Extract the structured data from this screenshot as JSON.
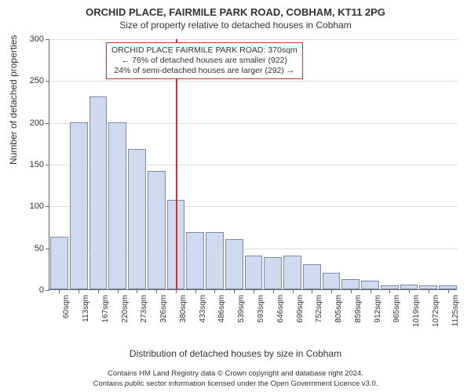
{
  "header": {
    "title": "ORCHID PLACE, FAIRMILE PARK ROAD, COBHAM, KT11 2PG",
    "subtitle": "Size of property relative to detached houses in Cobham"
  },
  "chart": {
    "type": "bar",
    "background_color": "#ffffff",
    "grid_color": "#dddddd",
    "bar_fill": "#cfdaee",
    "bar_stroke": "#7a8aa8",
    "reference_line_color": "#cc3333",
    "reference_line_x_index": 6,
    "x_categories": [
      "60sqm",
      "113sqm",
      "167sqm",
      "220sqm",
      "273sqm",
      "326sqm",
      "380sqm",
      "433sqm",
      "486sqm",
      "539sqm",
      "593sqm",
      "646sqm",
      "699sqm",
      "752sqm",
      "805sqm",
      "859sqm",
      "912sqm",
      "965sqm",
      "1019sqm",
      "1072sqm",
      "1125sqm"
    ],
    "values": [
      63,
      200,
      231,
      200,
      168,
      142,
      107,
      68,
      68,
      60,
      40,
      38,
      40,
      30,
      20,
      12,
      10,
      5,
      6,
      5,
      5
    ],
    "y_axis": {
      "min": 0,
      "max": 300,
      "tick_step": 50,
      "label": "Number of detached properties",
      "label_fontsize": 12,
      "tick_fontsize": 11
    },
    "x_axis": {
      "label": "Distribution of detached houses by size in Cobham",
      "label_fontsize": 12,
      "tick_fontsize": 10
    },
    "annotation": {
      "line1": "ORCHID PLACE FAIRMILE PARK ROAD: 370sqm",
      "line2": "← 76% of detached houses are smaller (922)",
      "line3": "24% of semi-detached houses are larger (292) →",
      "border_color": "#cc3333",
      "fontsize": 10.5
    }
  },
  "footer": {
    "line1": "Contains HM Land Registry data © Crown copyright and database right 2024.",
    "line2": "Contains public sector information licensed under the Open Government Licence v3.0."
  }
}
